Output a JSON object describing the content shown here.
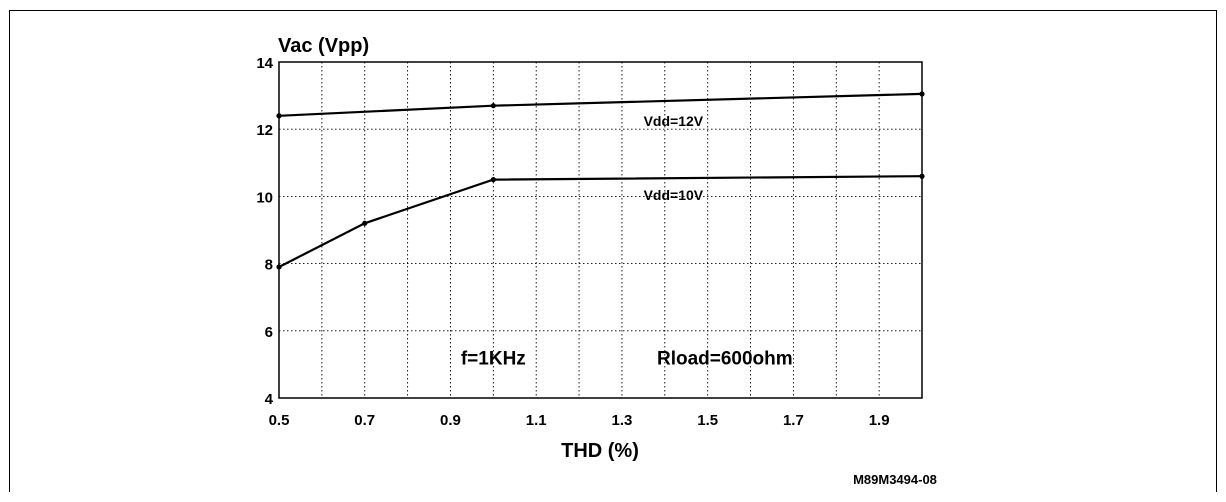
{
  "chart_data": {
    "type": "line",
    "title": "",
    "ylabel": "Vac (Vpp)",
    "xlabel": "THD (%)",
    "xlim": [
      0.5,
      2.0
    ],
    "ylim": [
      4,
      14
    ],
    "x_ticks": [
      0.5,
      0.7,
      0.9,
      1.1,
      1.3,
      1.5,
      1.7,
      1.9
    ],
    "x_tick_labels": [
      "0.5",
      "0.7",
      "0.9",
      "1.1",
      "1.3",
      "1.5",
      "1.7",
      "1.9"
    ],
    "y_ticks": [
      4,
      6,
      8,
      10,
      12,
      14
    ],
    "y_tick_labels": [
      "4",
      "6",
      "8",
      "10",
      "12",
      "14"
    ],
    "x_gridlines": [
      0.5,
      0.6,
      0.7,
      0.8,
      0.9,
      1.0,
      1.1,
      1.2,
      1.3,
      1.4,
      1.5,
      1.6,
      1.7,
      1.8,
      1.9,
      2.0
    ],
    "grid": true,
    "series": [
      {
        "name": "Vdd=12V",
        "x": [
          0.5,
          1.0,
          2.0
        ],
        "y": [
          12.4,
          12.7,
          13.05
        ]
      },
      {
        "name": "Vdd=10V",
        "x": [
          0.5,
          0.7,
          1.0,
          2.0
        ],
        "y": [
          7.9,
          9.2,
          10.5,
          10.6
        ]
      }
    ],
    "annotations": [
      {
        "text": "Vdd=12V",
        "x": 1.42,
        "y": 12.1
      },
      {
        "text": "Vdd=10V",
        "x": 1.42,
        "y": 9.9
      },
      {
        "text": "f=1KHz",
        "x": 1.0,
        "y": 5.0
      },
      {
        "text": "Rload=600ohm",
        "x": 1.54,
        "y": 5.0
      }
    ],
    "footer": "M89M3494-08"
  }
}
